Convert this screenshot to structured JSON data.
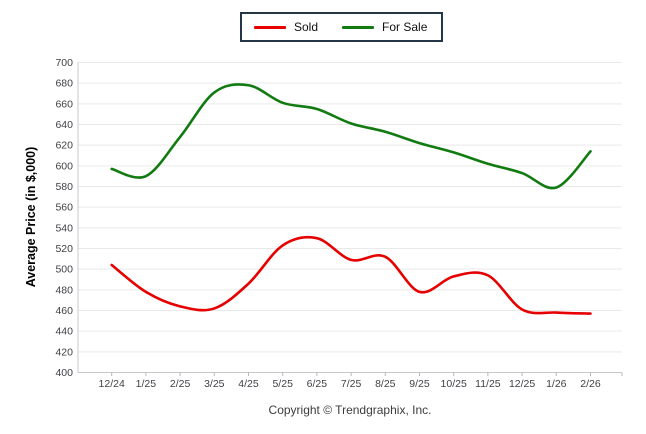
{
  "footer": {
    "copyright": "Copyright © Trendgraphix, Inc."
  },
  "chart_data": {
    "type": "line",
    "title": "",
    "xlabel": "",
    "ylabel": "Average Price (in $,000)",
    "ylim": [
      400,
      700
    ],
    "ytick_step": 20,
    "grid": true,
    "smooth": true,
    "legend_position": "top-center",
    "categories": [
      "12/24",
      "1/25",
      "2/25",
      "3/25",
      "4/25",
      "5/25",
      "6/25",
      "7/25",
      "8/25",
      "9/25",
      "10/25",
      "11/25",
      "12/25",
      "1/26",
      "2/26"
    ],
    "series": [
      {
        "name": "Sold",
        "color": "#e60000",
        "values": [
          504,
          478,
          464,
          462,
          486,
          523,
          530,
          509,
          512,
          478,
          493,
          494,
          461,
          458,
          457
        ]
      },
      {
        "name": "For Sale",
        "color": "#117b11",
        "values": [
          597,
          590,
          628,
          671,
          678,
          661,
          655,
          641,
          633,
          622,
          613,
          602,
          593,
          579,
          614
        ]
      }
    ],
    "colors": {
      "gridline": "#e9e9e9",
      "axis": "#c9c9c9",
      "tick": "#b5b5b5",
      "tick_label": "#3f3f46",
      "legend_border": "#253746"
    }
  }
}
